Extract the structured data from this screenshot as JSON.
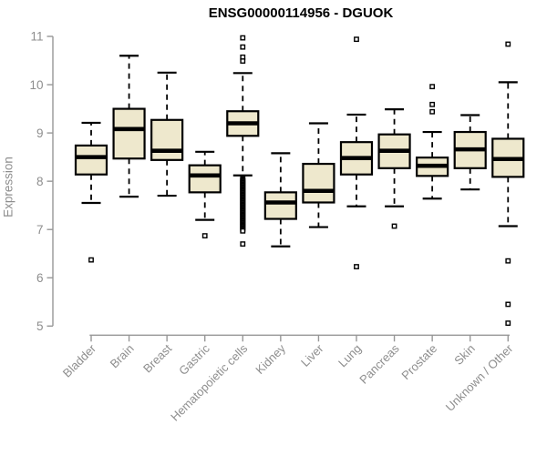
{
  "colors": {
    "background": "#ffffff",
    "box_fill": "#EEE8CD",
    "box_stroke": "#000000",
    "median": "#000000",
    "axis_line": "#979797",
    "axis_text": "#8e8e8e",
    "title_text": "#000000"
  },
  "chart_data": {
    "type": "boxplot",
    "title": "ENSG00000114956 - DGUOK",
    "ylabel": "Expression",
    "xlabel": "",
    "ylim": [
      5,
      11
    ],
    "yticks": [
      5,
      6,
      7,
      8,
      9,
      10,
      11
    ],
    "grid": false,
    "legend": false,
    "x_tick_rotation": -45,
    "categories": [
      "Bladder",
      "Brain",
      "Breast",
      "Gastric",
      "Hematopoietic cells",
      "Kidney",
      "Liver",
      "Lung",
      "Pancreas",
      "Prostate",
      "Skin",
      "Unknown / Other"
    ],
    "boxes": [
      {
        "category": "Bladder",
        "whisker_low": 7.55,
        "q1": 8.14,
        "median": 8.5,
        "q3": 8.74,
        "whisker_high": 9.21,
        "outliers": [
          6.37
        ]
      },
      {
        "category": "Brain",
        "whisker_low": 7.68,
        "q1": 8.47,
        "median": 9.08,
        "q3": 9.5,
        "whisker_high": 10.6,
        "outliers": []
      },
      {
        "category": "Breast",
        "whisker_low": 7.7,
        "q1": 8.44,
        "median": 8.63,
        "q3": 9.27,
        "whisker_high": 10.25,
        "outliers": []
      },
      {
        "category": "Gastric",
        "whisker_low": 7.2,
        "q1": 7.77,
        "median": 8.12,
        "q3": 8.33,
        "whisker_high": 8.61,
        "outliers": [
          6.87
        ]
      },
      {
        "category": "Hematopoietic cells",
        "whisker_low": 8.12,
        "q1": 8.94,
        "median": 9.2,
        "q3": 9.45,
        "whisker_high": 10.24,
        "outliers": [
          10.97,
          10.78,
          10.57,
          10.49,
          6.7
        ],
        "outlier_dense_range": {
          "from": 8.05,
          "to": 6.97,
          "count": 48
        }
      },
      {
        "category": "Kidney",
        "whisker_low": 6.65,
        "q1": 7.22,
        "median": 7.56,
        "q3": 7.77,
        "whisker_high": 8.58,
        "outliers": []
      },
      {
        "category": "Liver",
        "whisker_low": 7.05,
        "q1": 7.56,
        "median": 7.8,
        "q3": 8.36,
        "whisker_high": 9.2,
        "outliers": []
      },
      {
        "category": "Lung",
        "whisker_low": 7.48,
        "q1": 8.14,
        "median": 8.48,
        "q3": 8.81,
        "whisker_high": 9.38,
        "outliers": [
          10.94,
          6.23
        ]
      },
      {
        "category": "Pancreas",
        "whisker_low": 7.48,
        "q1": 8.27,
        "median": 8.63,
        "q3": 8.97,
        "whisker_high": 9.49,
        "outliers": [
          7.07
        ]
      },
      {
        "category": "Prostate",
        "whisker_low": 7.64,
        "q1": 8.11,
        "median": 8.32,
        "q3": 8.49,
        "whisker_high": 9.02,
        "outliers": [
          9.96,
          9.59,
          9.44
        ]
      },
      {
        "category": "Skin",
        "whisker_low": 7.83,
        "q1": 8.27,
        "median": 8.66,
        "q3": 9.02,
        "whisker_high": 9.37,
        "outliers": []
      },
      {
        "category": "Unknown / Other",
        "whisker_low": 7.07,
        "q1": 8.09,
        "median": 8.46,
        "q3": 8.88,
        "whisker_high": 10.05,
        "outliers": [
          10.84,
          6.35,
          5.45,
          5.06
        ]
      }
    ]
  }
}
